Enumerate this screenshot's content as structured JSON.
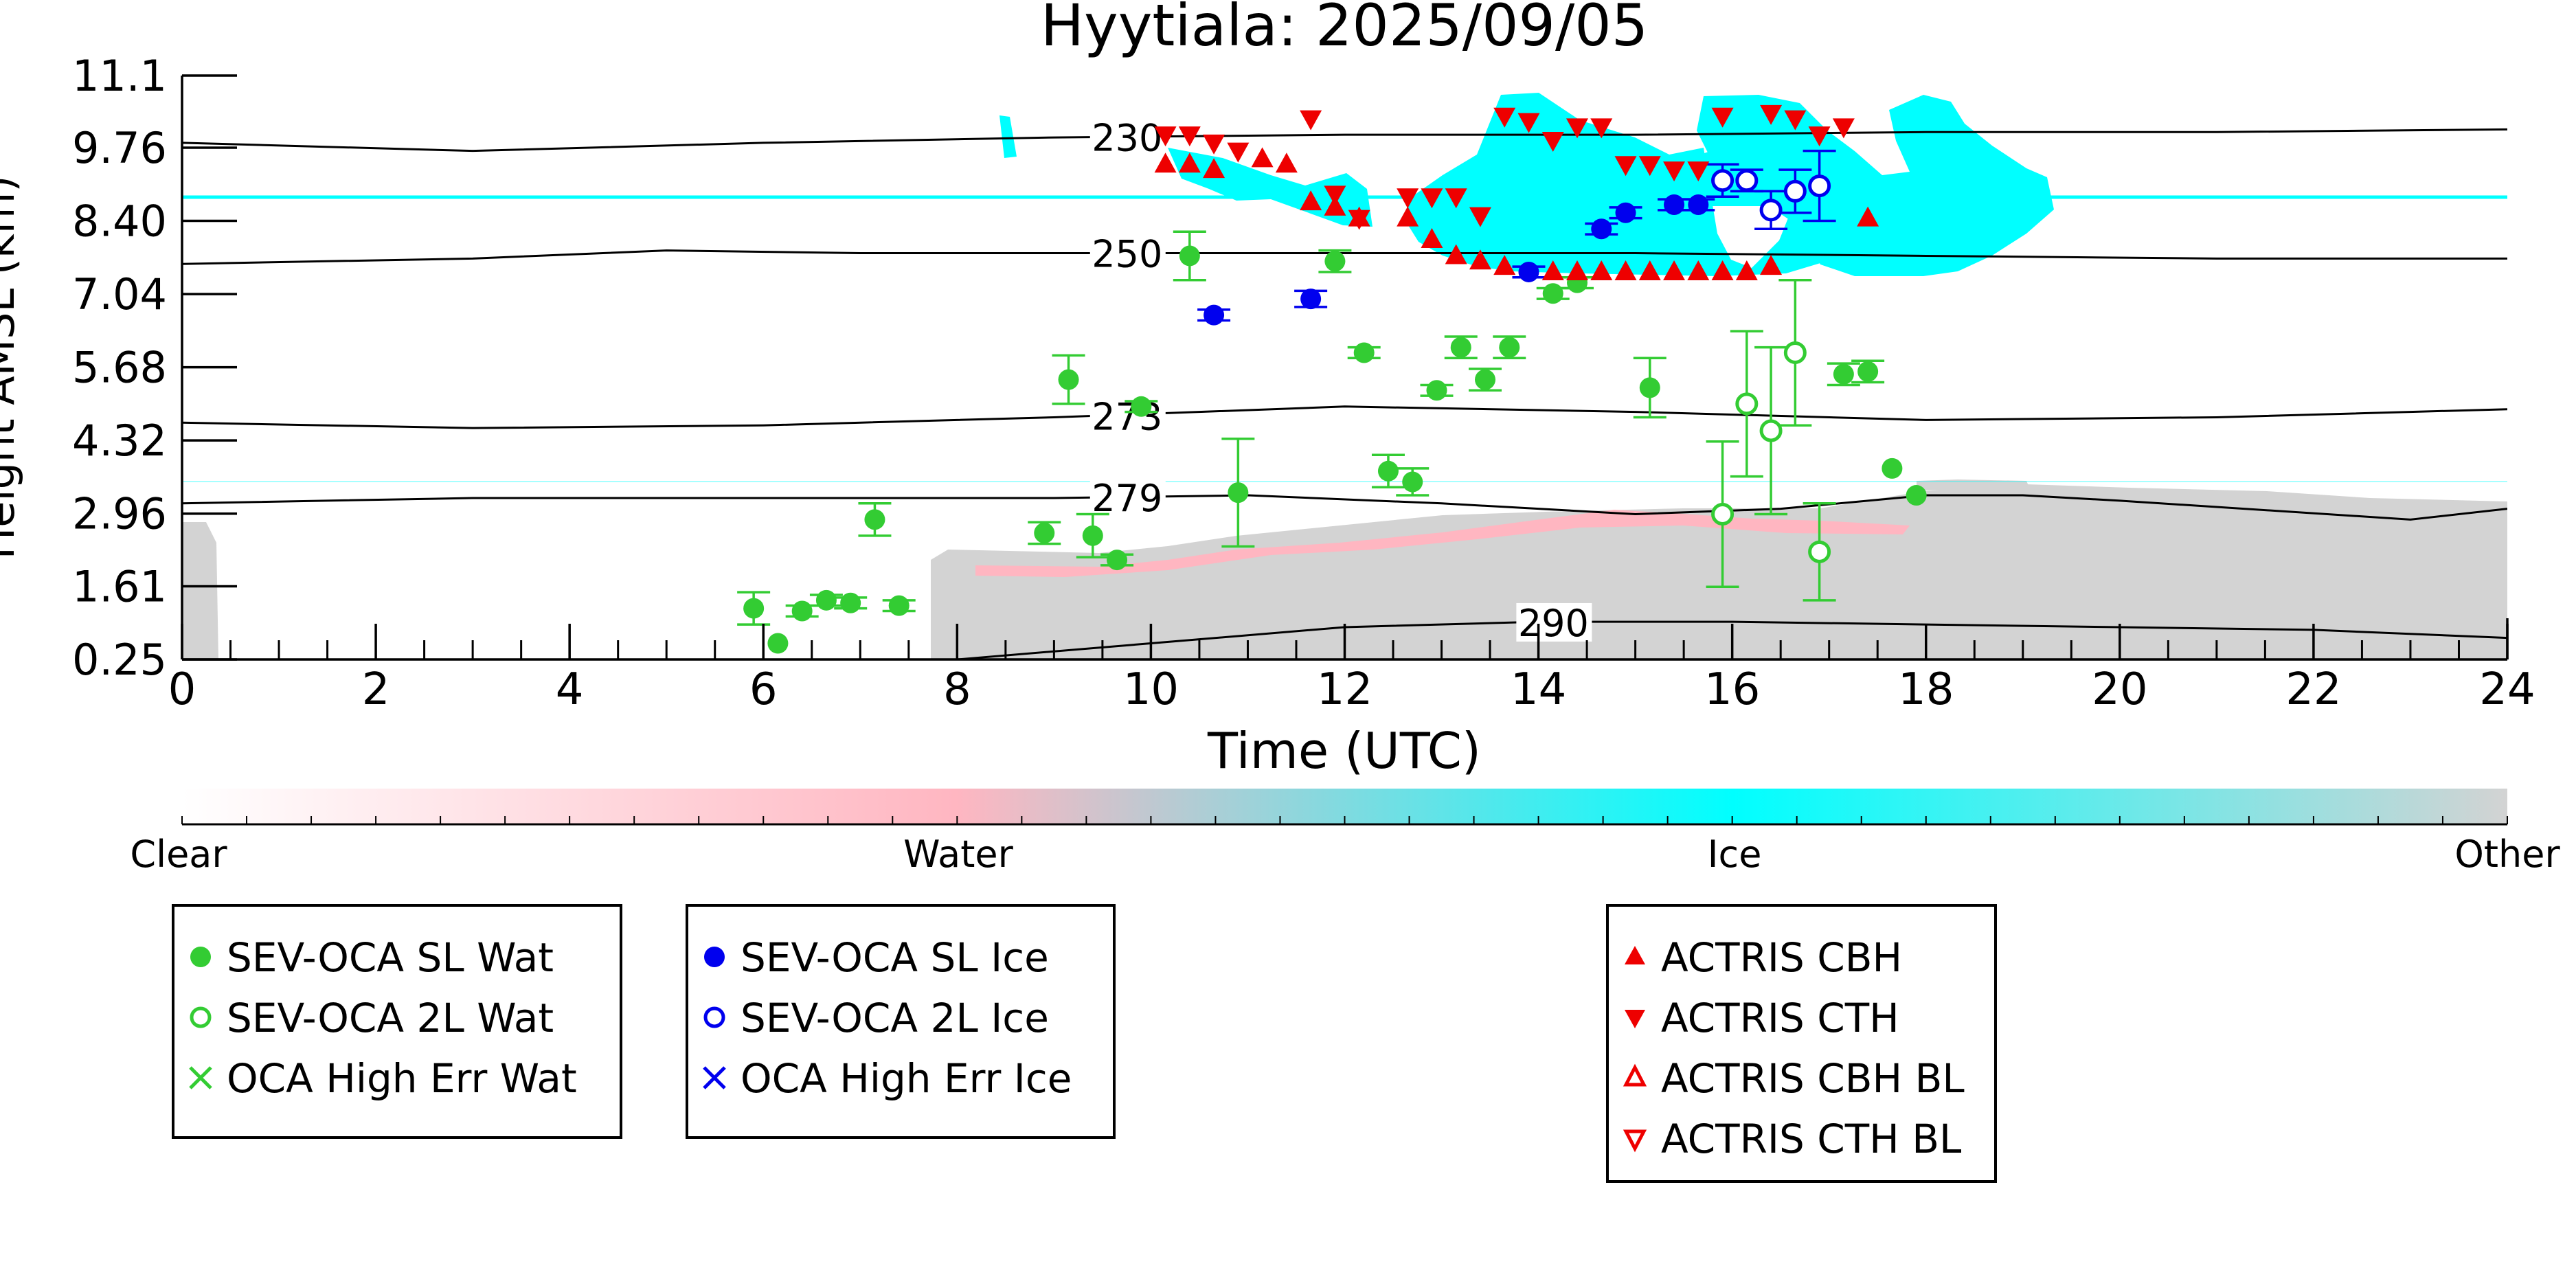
{
  "chart_data": {
    "type": "scatter",
    "title": "Hyytiala: 2025/09/05",
    "xlabel": "Time (UTC)",
    "ylabel": "Height AMSL (km)",
    "xlim": [
      0,
      24
    ],
    "ylim": [
      0.25,
      11.1
    ],
    "x_ticks": [
      0,
      2,
      4,
      6,
      8,
      10,
      12,
      14,
      16,
      18,
      20,
      22,
      24
    ],
    "x_tick_labels": [
      "0",
      "2",
      "4",
      "6",
      "8",
      "10",
      "12",
      "14",
      "16",
      "18",
      "20",
      "22",
      "24"
    ],
    "y_ticks": [
      0.25,
      1.61,
      2.96,
      4.32,
      5.68,
      7.04,
      8.4,
      9.76,
      11.1
    ],
    "y_tick_labels": [
      "0.25",
      "1.61",
      "2.96",
      "4.32",
      "5.68",
      "7.04",
      "8.40",
      "9.76",
      "11.1"
    ],
    "grid": false,
    "colorbar": {
      "labels": [
        "Clear",
        "Water",
        "Ice",
        "Other"
      ],
      "colors": [
        "#ffffff",
        "#ffb6c1",
        "#00ffff",
        "#d3d3d3"
      ]
    },
    "contours": [
      {
        "label": "230",
        "label_x": 9.4,
        "x": [
          0,
          3,
          6,
          9,
          12,
          15,
          18,
          21,
          24
        ],
        "y": [
          9.85,
          9.7,
          9.85,
          9.95,
          10.0,
          10.0,
          10.05,
          10.05,
          10.1
        ]
      },
      {
        "label": "250",
        "label_x": 9.4,
        "x": [
          0,
          3,
          5,
          7,
          9,
          12,
          15,
          18,
          21,
          24
        ],
        "y": [
          7.6,
          7.7,
          7.85,
          7.8,
          7.8,
          7.8,
          7.8,
          7.75,
          7.7,
          7.7
        ]
      },
      {
        "label": "273",
        "label_x": 9.4,
        "x": [
          0,
          3,
          6,
          9,
          12,
          15,
          18,
          21,
          24
        ],
        "y": [
          4.65,
          4.55,
          4.6,
          4.75,
          4.95,
          4.85,
          4.7,
          4.75,
          4.9
        ]
      },
      {
        "label": "279",
        "label_x": 9.4,
        "x": [
          0,
          3,
          6,
          9,
          11,
          13,
          15,
          16.5,
          18,
          19,
          20,
          23,
          24
        ],
        "y": [
          3.15,
          3.25,
          3.25,
          3.25,
          3.3,
          3.15,
          2.95,
          3.05,
          3.3,
          3.3,
          3.2,
          2.85,
          3.05
        ]
      },
      {
        "label": "290",
        "label_x": 13.8,
        "x": [
          0,
          6,
          8,
          10,
          12,
          14,
          16,
          18,
          20,
          22,
          24
        ],
        "y": [
          0.1,
          0.1,
          0.25,
          0.55,
          0.85,
          0.95,
          0.95,
          0.9,
          0.85,
          0.8,
          0.65
        ]
      }
    ],
    "series": [
      {
        "name": "SEV-OCA SL Wat",
        "color": "#33cc33",
        "marker": "filled-circle",
        "x": [
          5.9,
          6.15,
          6.4,
          6.65,
          6.9,
          7.15,
          7.4,
          8.9,
          9.15,
          9.4,
          9.65,
          9.9,
          10.4,
          10.9,
          11.9,
          12.2,
          12.45,
          12.7,
          12.95,
          13.2,
          13.45,
          13.7,
          14.15,
          14.4,
          15.15,
          17.15,
          17.4,
          17.65,
          17.9
        ],
        "y": [
          1.2,
          0.55,
          1.15,
          1.35,
          1.3,
          2.85,
          1.25,
          2.6,
          5.45,
          2.55,
          2.1,
          4.95,
          7.75,
          3.35,
          7.65,
          5.95,
          3.75,
          3.55,
          5.25,
          6.05,
          5.45,
          6.05,
          7.05,
          7.25,
          5.3,
          5.55,
          5.6,
          3.8,
          3.3
        ],
        "err": [
          0.3,
          0.0,
          0.1,
          0.1,
          0.1,
          0.3,
          0.1,
          0.2,
          0.45,
          0.4,
          0.1,
          0.1,
          0.45,
          1.0,
          0.2,
          0.1,
          0.3,
          0.25,
          0.1,
          0.2,
          0.2,
          0.2,
          0.1,
          0.1,
          0.55,
          0.2,
          0.2,
          0.0,
          0.0
        ]
      },
      {
        "name": "SEV-OCA 2L Wat",
        "color": "#33cc33",
        "marker": "open-circle",
        "x": [
          15.9,
          16.15,
          16.4,
          16.65,
          16.9
        ],
        "y": [
          2.95,
          5.0,
          4.5,
          5.95,
          2.25
        ],
        "err": [
          1.35,
          1.35,
          1.55,
          1.35,
          0.9
        ]
      },
      {
        "name": "OCA High Err Wat",
        "color": "#33cc33",
        "marker": "x",
        "x": [],
        "y": []
      },
      {
        "name": "SEV-OCA SL Ice",
        "color": "#0000ee",
        "marker": "filled-circle",
        "x": [
          10.65,
          11.65,
          13.9,
          14.65,
          14.9,
          15.4,
          15.65
        ],
        "y": [
          6.65,
          6.95,
          7.45,
          8.25,
          8.55,
          8.7,
          8.7
        ],
        "err": [
          0.1,
          0.15,
          0.1,
          0.1,
          0.1,
          0.1,
          0.1
        ]
      },
      {
        "name": "SEV-OCA 2L Ice",
        "color": "#0000ee",
        "marker": "open-circle",
        "x": [
          15.9,
          16.15,
          16.4,
          16.65,
          16.9
        ],
        "y": [
          9.15,
          9.15,
          8.6,
          8.95,
          9.05
        ],
        "err": [
          0.3,
          0.2,
          0.35,
          0.4,
          0.65
        ]
      },
      {
        "name": "OCA High Err Ice",
        "color": "#0000ee",
        "marker": "x",
        "x": [],
        "y": []
      },
      {
        "name": "ACTRIS CBH",
        "color": "#ee0000",
        "marker": "triangle-up",
        "x": [
          10.15,
          10.4,
          10.65,
          11.15,
          11.4,
          11.65,
          11.9,
          12.15,
          12.65,
          12.9,
          13.15,
          13.4,
          13.65,
          14.15,
          14.4,
          14.65,
          14.9,
          15.15,
          15.4,
          15.65,
          15.9,
          16.15,
          16.4,
          17.4
        ],
        "y": [
          9.45,
          9.45,
          9.35,
          9.55,
          9.45,
          8.75,
          8.65,
          8.45,
          8.45,
          8.05,
          7.75,
          7.65,
          7.55,
          7.45,
          7.45,
          7.45,
          7.45,
          7.45,
          7.45,
          7.45,
          7.45,
          7.45,
          7.55,
          8.45
        ]
      },
      {
        "name": "ACTRIS CTH",
        "color": "#ee0000",
        "marker": "triangle-down",
        "x": [
          10.15,
          10.4,
          10.65,
          10.9,
          11.65,
          11.9,
          12.15,
          12.65,
          12.9,
          13.15,
          13.4,
          13.65,
          13.9,
          14.15,
          14.4,
          14.65,
          14.9,
          15.15,
          15.4,
          15.65,
          15.9,
          16.4,
          16.65,
          16.9,
          17.15
        ],
        "y": [
          10.0,
          10.0,
          9.85,
          9.7,
          10.3,
          8.9,
          8.45,
          8.85,
          8.85,
          8.85,
          8.5,
          10.35,
          10.25,
          9.9,
          10.15,
          10.15,
          9.45,
          9.45,
          9.35,
          9.35,
          10.35,
          10.4,
          10.3,
          10.0,
          10.15
        ]
      },
      {
        "name": "ACTRIS CBH BL",
        "color": "#ee0000",
        "marker": "open-triangle-up",
        "x": [],
        "y": []
      },
      {
        "name": "ACTRIS CTH BL",
        "color": "#ee0000",
        "marker": "open-triangle-down",
        "x": [],
        "y": []
      }
    ],
    "legend_placement": "below-plot",
    "legend_groups": [
      [
        0,
        1,
        2
      ],
      [
        3,
        4,
        5
      ],
      [
        6,
        7,
        8,
        9
      ]
    ]
  }
}
